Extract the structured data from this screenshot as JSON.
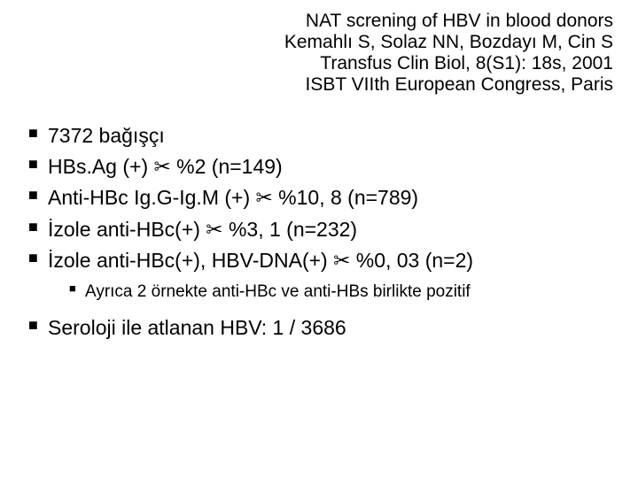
{
  "header": {
    "line1": "NAT screning of HBV in blood donors",
    "line2": "Kemahlı S, Solaz NN, Bozdayı M, Cin S",
    "line3": "Transfus Clin Biol, 8(S1): 18s, 2001",
    "line4": "ISBT VIIth European Congress, Paris"
  },
  "bullets": {
    "b1": "7372 bağışçı",
    "b2": "HBs.Ag (+) ✂ %2 (n=149)",
    "b3": "Anti-HBc Ig.G-Ig.M (+) ✂ %10, 8 (n=789)",
    "b4": "İzole anti-HBc(+) ✂ %3, 1 (n=232)",
    "b5": "İzole anti-HBc(+), HBV-DNA(+) ✂ %0, 03 (n=2)",
    "sub1": "Ayrıca 2 örnekte anti-HBc ve anti-HBs birlikte pozitif",
    "b6": "Seroloji ile atlanan HBV: 1 / 3686"
  },
  "style": {
    "background_color": "#ffffff",
    "text_color": "#000000",
    "header_fontsize": 21,
    "bullet_fontsize": 23,
    "sub_fontsize": 19,
    "font_family": "Arial"
  }
}
